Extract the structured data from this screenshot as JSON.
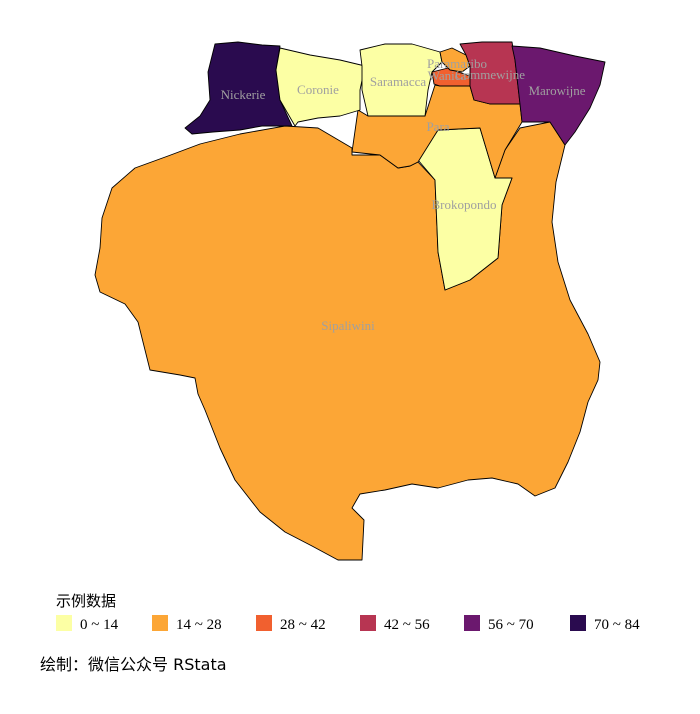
{
  "map": {
    "regions": [
      {
        "name": "Sipaliwini",
        "class": 1
      },
      {
        "name": "Brokopondo",
        "class": 0
      },
      {
        "name": "Para",
        "class": 1
      },
      {
        "name": "Nickerie",
        "class": 5
      },
      {
        "name": "Coronie",
        "class": 0
      },
      {
        "name": "Saramacca",
        "class": 0
      },
      {
        "name": "Wanica",
        "class": 2
      },
      {
        "name": "Paramaribo",
        "class": 1
      },
      {
        "name": "Commewijne",
        "class": 3
      },
      {
        "name": "Marowijne",
        "class": 4
      }
    ]
  },
  "legend": {
    "title": "示例数据",
    "items": [
      {
        "label": "0 ~ 14",
        "color": "#fcffa4"
      },
      {
        "label": "14 ~ 28",
        "color": "#fca636"
      },
      {
        "label": "28 ~ 42",
        "color": "#f1602f"
      },
      {
        "label": "42 ~ 56",
        "color": "#b73552"
      },
      {
        "label": "56 ~ 70",
        "color": "#6b186e"
      },
      {
        "label": "70 ~ 84",
        "color": "#2a0b4f"
      }
    ]
  },
  "caption": "绘制：微信公众号 RStata"
}
